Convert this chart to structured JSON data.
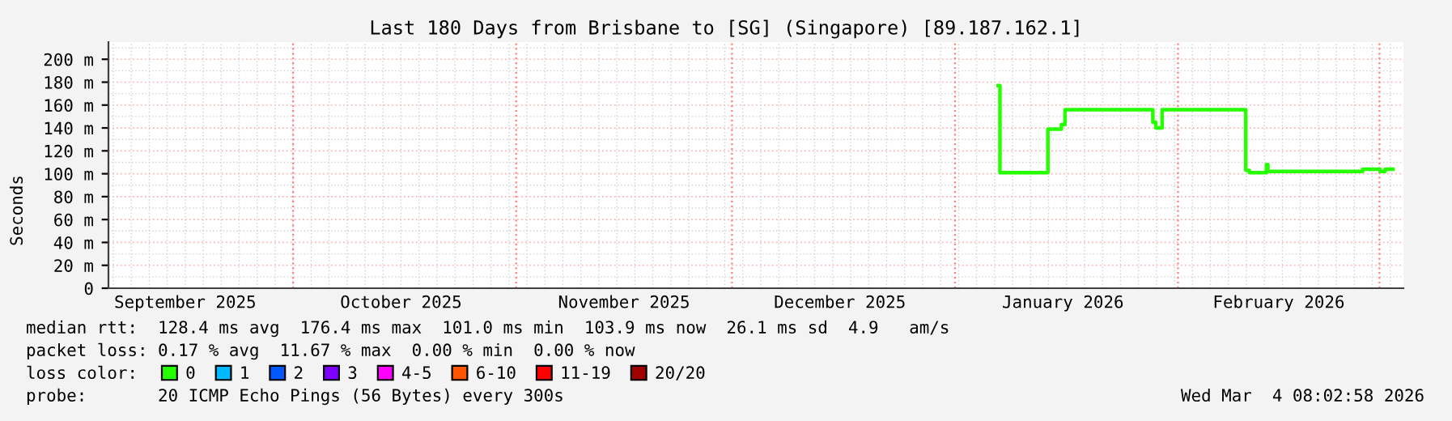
{
  "chart_data": {
    "type": "step",
    "title": "Last 180 Days from Brisbane to [SG] (Singapore) [89.187.162.1]",
    "ylabel": "Seconds",
    "xlim": [
      "2025-09-05T08:00",
      "2026-03-04T08:00"
    ],
    "xticks": [
      {
        "value": "2025-09-16",
        "label": "September 2025"
      },
      {
        "value": "2025-10-16",
        "label": "October 2025"
      },
      {
        "value": "2025-11-16",
        "label": "November 2025"
      },
      {
        "value": "2025-12-16",
        "label": "December 2025"
      },
      {
        "value": "2026-01-16",
        "label": "January 2026"
      },
      {
        "value": "2026-02-15",
        "label": "February 2026"
      }
    ],
    "ylim": [
      0,
      215
    ],
    "yticks": [
      {
        "value": 0,
        "label": "0"
      },
      {
        "value": 20,
        "label": "20 m"
      },
      {
        "value": 40,
        "label": "40 m"
      },
      {
        "value": 60,
        "label": "60 m"
      },
      {
        "value": 80,
        "label": "80 m"
      },
      {
        "value": 100,
        "label": "100 m"
      },
      {
        "value": 120,
        "label": "120 m"
      },
      {
        "value": 140,
        "label": "140 m"
      },
      {
        "value": 160,
        "label": "160 m"
      },
      {
        "value": 180,
        "label": "180 m"
      },
      {
        "value": 200,
        "label": "200 m"
      }
    ],
    "grid": true,
    "legend": "bottom",
    "ref_lines": [
      {
        "axis": "x",
        "value": "2025-10-01",
        "color": "#ff8080",
        "line_style": "dotted"
      },
      {
        "axis": "x",
        "value": "2025-11-01",
        "color": "#ff8080",
        "line_style": "dotted"
      },
      {
        "axis": "x",
        "value": "2025-12-01",
        "color": "#ff8080",
        "line_style": "dotted"
      },
      {
        "axis": "x",
        "value": "2026-01-01",
        "color": "#ff8080",
        "line_style": "dotted"
      },
      {
        "axis": "x",
        "value": "2026-02-01",
        "color": "#ff8080",
        "line_style": "dotted"
      },
      {
        "axis": "x",
        "value": "2026-03-01",
        "color": "#ff8080",
        "line_style": "dotted"
      }
    ],
    "series": [
      {
        "name": "0",
        "color": "#26ff00",
        "x": [
          "2026-01-07T00:00",
          "2026-01-07T06:00",
          "2026-01-13T22:00",
          "2026-01-15T19:00",
          "2026-01-16T07:00",
          "2026-01-28T12:00",
          "2026-01-28T22:00",
          "2026-01-29T19:00",
          "2026-02-10T10:00",
          "2026-02-10T22:00",
          "2026-02-13T07:00",
          "2026-02-13T12:00",
          "2026-02-26T16:00",
          "2026-03-01T02:00",
          "2026-03-01T19:00",
          "2026-03-02T21:00"
        ],
        "values": [
          177,
          101,
          139,
          143,
          156,
          145,
          140,
          156,
          103,
          101,
          108,
          102,
          104,
          102,
          104,
          104
        ]
      },
      {
        "name": "1",
        "color": "#00b8ff"
      },
      {
        "name": "2",
        "color": "#0059ff"
      },
      {
        "name": "3",
        "color": "#7e00ff"
      },
      {
        "name": "4-5",
        "color": "#ff00ff"
      },
      {
        "name": "6-10",
        "color": "#ff5500"
      },
      {
        "name": "11-19",
        "color": "#ff0000"
      },
      {
        "name": "20/20",
        "color": "#a10000"
      }
    ],
    "annotations": [
      "median rtt:  128.4 ms avg  176.4 ms max  101.0 ms min  103.9 ms now  26.1 ms sd  4.9   am/s",
      "packet loss: 0.17 % avg  11.67 % max  0.00 % min  0.00 % now",
      "loss color:",
      "probe:       20 ICMP Echo Pings (56 Bytes) every 300s",
      "Wed Mar  4 08:02:58 2026"
    ]
  }
}
